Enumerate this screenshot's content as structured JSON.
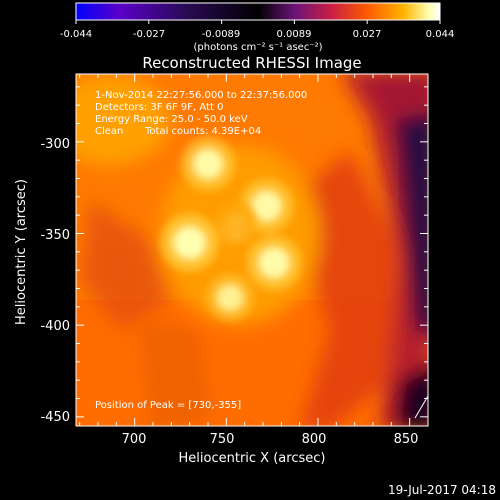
{
  "colorbar": {
    "tick_labels": [
      "-0.044",
      "-0.027",
      "-0.0089",
      "0.0089",
      "0.027",
      "0.044"
    ],
    "unit_label": "(photons cm⁻² s⁻¹ asec⁻²)",
    "range": [
      -0.044,
      0.044
    ],
    "colormap": [
      "#0000ff",
      "#5a00c8",
      "#2a0a55",
      "#000000",
      "#6a1478",
      "#c81e46",
      "#ff5a00",
      "#ffb400",
      "#ffffb4",
      "#ffffff"
    ]
  },
  "title": "Reconstructed RHESSI Image",
  "annotations": {
    "time_range": "1-Nov-2014 22:27:56.000 to 22:37:56.000",
    "detectors": "Detectors: 3F 6F 9F, Att 0",
    "energy": "Energy Range: 25.0 - 50.0 keV",
    "clean": "Clean",
    "total_counts": "Total counts: 4.39E+04",
    "peak": "Position of Peak = [730,-355]"
  },
  "footer": {
    "date": "19-Jul-2017 04:18"
  },
  "chart_data": {
    "type": "heatmap",
    "title": "Reconstructed RHESSI Image",
    "xlabel": "Heliocentric X (arcsec)",
    "ylabel": "Heliocentric Y (arcsec)",
    "xlim": [
      668,
      860
    ],
    "ylim": [
      -455,
      -263
    ],
    "x_ticks": [
      700,
      750,
      800,
      850
    ],
    "y_ticks": [
      -450,
      -400,
      -350,
      -300
    ],
    "x_tick_labels": [
      "700",
      "750",
      "800",
      "850"
    ],
    "y_tick_labels": [
      "-450",
      "-400",
      "-350",
      "-300"
    ],
    "sources": [
      {
        "x": 730,
        "y": -355,
        "intensity": 1.0
      },
      {
        "x": 740,
        "y": -312,
        "intensity": 0.85
      },
      {
        "x": 772,
        "y": -335,
        "intensity": 0.85
      },
      {
        "x": 776,
        "y": -366,
        "intensity": 0.9
      },
      {
        "x": 752,
        "y": -385,
        "intensity": 0.6
      },
      {
        "x": 755,
        "y": -345,
        "intensity": 0.3
      }
    ],
    "peak": [
      730,
      -355
    ]
  }
}
